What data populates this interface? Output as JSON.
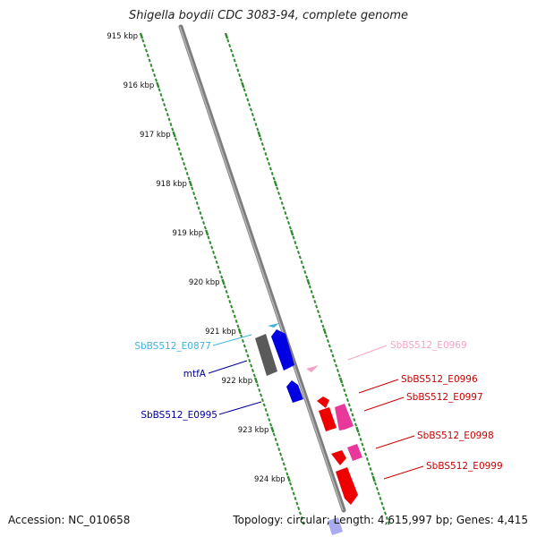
{
  "title": "Shigella boydii CDC 3083-94, complete genome",
  "footer": {
    "accession": "Accession: NC_010658",
    "summary": "Topology: circular; Length: 4,615,997 bp; Genes: 4,415"
  },
  "axis": {
    "unit": "kbp",
    "ticks": [
      {
        "label": "915 kbp",
        "kbp": 915
      },
      {
        "label": "916 kbp",
        "kbp": 916
      },
      {
        "label": "917 kbp",
        "kbp": 917
      },
      {
        "label": "918 kbp",
        "kbp": 918
      },
      {
        "label": "919 kbp",
        "kbp": 919
      },
      {
        "label": "920 kbp",
        "kbp": 920
      },
      {
        "label": "921 kbp",
        "kbp": 921
      },
      {
        "label": "922 kbp",
        "kbp": 922
      },
      {
        "label": "923 kbp",
        "kbp": 923
      },
      {
        "label": "924 kbp",
        "kbp": 924
      }
    ]
  },
  "colors": {
    "backbone": "#8a8a8a",
    "tick": "#2e8b2e",
    "cyan": "#3fb3e0",
    "gray": "#5a5a5a",
    "blue": "#0000e0",
    "pink": "#f4a3c8",
    "red": "#ee0000",
    "magenta": "#e8389a"
  },
  "genes": {
    "left": [
      {
        "label": "SbBS512_E0877",
        "color": "#3fb3e0"
      },
      {
        "label": "mtfA",
        "color": "#00009c"
      },
      {
        "label": "SbBS512_E0995",
        "color": "#00009c"
      }
    ],
    "right": [
      {
        "label": "SbBS512_E0969",
        "color": "#f4a3c8"
      },
      {
        "label": "SbBS512_E0996",
        "color": "#cc0000"
      },
      {
        "label": "SbBS512_E0997",
        "color": "#cc0000"
      },
      {
        "label": "SbBS512_E0998",
        "color": "#cc0000"
      },
      {
        "label": "SbBS512_E0999",
        "color": "#cc0000"
      }
    ]
  }
}
